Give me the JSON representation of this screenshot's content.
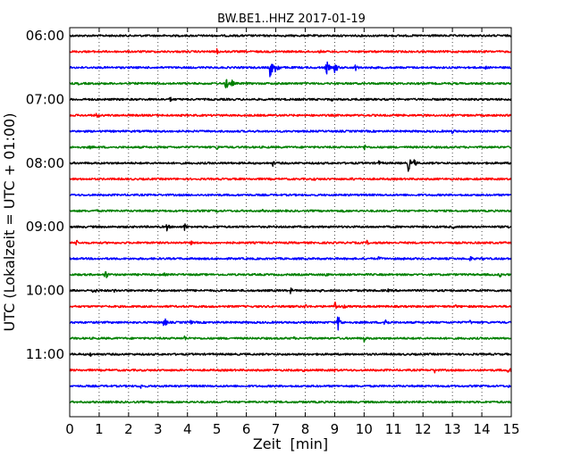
{
  "chart_data": {
    "type": "line",
    "title": "BW.BE1..HHZ 2017-01-19",
    "xlabel": "Zeit  [min]",
    "ylabel": "UTC (Lokalzeit = UTC + 01:00)",
    "xlim": [
      0,
      15
    ],
    "x_ticks": [
      0,
      1,
      2,
      3,
      4,
      5,
      6,
      7,
      8,
      9,
      10,
      11,
      12,
      13,
      14,
      15
    ],
    "y_tick_labels": [
      "06:00",
      "07:00",
      "08:00",
      "09:00",
      "10:00",
      "11:00"
    ],
    "grid": "vertical dotted",
    "trace_colors": [
      "#000000",
      "#ff0000",
      "#0000ff",
      "#008000"
    ],
    "trace_minutes": 15,
    "traces": [
      {
        "start": "06:00",
        "events": [
          [
            5.0,
            0.2
          ]
        ]
      },
      {
        "start": "06:15",
        "events": [
          [
            5.0,
            0.6
          ],
          [
            8.5,
            0.4
          ]
        ]
      },
      {
        "start": "06:30",
        "events": [
          [
            6.8,
            2.2
          ],
          [
            7.0,
            1.6
          ],
          [
            8.7,
            1.8
          ],
          [
            9.0,
            1.4
          ],
          [
            9.7,
            0.7
          ],
          [
            14.1,
            0.5
          ]
        ]
      },
      {
        "start": "06:45",
        "events": [
          [
            0.3,
            0.3
          ],
          [
            5.3,
            1.4
          ],
          [
            5.5,
            0.8
          ]
        ]
      },
      {
        "start": "07:00",
        "events": [
          [
            3.4,
            0.6
          ],
          [
            7.9,
            0.4
          ],
          [
            8.9,
            0.4
          ]
        ]
      },
      {
        "start": "07:15",
        "events": [
          [
            0.9,
            0.7
          ]
        ]
      },
      {
        "start": "07:30",
        "events": [
          [
            13.0,
            0.6
          ]
        ]
      },
      {
        "start": "07:45",
        "events": [
          [
            0.7,
            0.4
          ],
          [
            5.0,
            0.6
          ],
          [
            10.0,
            0.7
          ]
        ]
      },
      {
        "start": "08:00",
        "events": [
          [
            6.9,
            0.6
          ],
          [
            10.5,
            0.5
          ],
          [
            11.5,
            1.6
          ],
          [
            11.7,
            0.8
          ]
        ]
      },
      {
        "start": "08:15",
        "events": [
          [
            8.3,
            0.4
          ],
          [
            9.6,
            0.5
          ],
          [
            13.8,
            0.4
          ]
        ]
      },
      {
        "start": "08:30",
        "events": [
          [
            1.0,
            0.3
          ],
          [
            5.0,
            0.3
          ],
          [
            9.3,
            0.3
          ]
        ]
      },
      {
        "start": "08:45",
        "events": [
          [
            0.9,
            0.4
          ],
          [
            5.0,
            0.4
          ],
          [
            6.5,
            0.5
          ],
          [
            9.3,
            0.4
          ]
        ]
      },
      {
        "start": "09:00",
        "events": [
          [
            3.3,
            0.8
          ],
          [
            3.9,
            0.8
          ],
          [
            5.0,
            0.4
          ],
          [
            13.0,
            0.5
          ],
          [
            14.9,
            0.4
          ]
        ]
      },
      {
        "start": "09:15",
        "events": [
          [
            0.2,
            0.8
          ],
          [
            4.1,
            0.5
          ],
          [
            10.1,
            0.5
          ]
        ]
      },
      {
        "start": "09:30",
        "events": [
          [
            10.5,
            0.6
          ],
          [
            11.3,
            0.4
          ],
          [
            13.6,
            0.6
          ],
          [
            14.0,
            0.5
          ]
        ]
      },
      {
        "start": "09:45",
        "events": [
          [
            1.2,
            1.1
          ],
          [
            3.2,
            0.4
          ],
          [
            8.7,
            0.5
          ],
          [
            14.6,
            0.6
          ]
        ]
      },
      {
        "start": "10:00",
        "events": [
          [
            0.8,
            0.9
          ],
          [
            1.5,
            0.5
          ],
          [
            7.5,
            0.6
          ],
          [
            8.5,
            0.4
          ],
          [
            10.8,
            0.4
          ]
        ]
      },
      {
        "start": "10:15",
        "events": [
          [
            8.0,
            0.6
          ],
          [
            9.0,
            1.2
          ],
          [
            9.3,
            0.5
          ],
          [
            13.1,
            0.4
          ]
        ]
      },
      {
        "start": "10:30",
        "events": [
          [
            3.2,
            1.2
          ],
          [
            4.1,
            0.5
          ],
          [
            9.1,
            1.9
          ],
          [
            10.7,
            1.3
          ],
          [
            13.6,
            0.5
          ]
        ]
      },
      {
        "start": "10:45",
        "events": [
          [
            3.9,
            0.6
          ],
          [
            7.6,
            0.4
          ],
          [
            10.0,
            0.7
          ]
        ]
      },
      {
        "start": "11:00",
        "events": [
          [
            0.7,
            0.5
          ]
        ]
      },
      {
        "start": "11:15",
        "events": [
          [
            7.9,
            0.6
          ],
          [
            9.0,
            0.5
          ],
          [
            12.4,
            0.6
          ],
          [
            14.9,
            0.7
          ]
        ]
      },
      {
        "start": "11:30",
        "events": [
          [
            2.4,
            0.6
          ],
          [
            14.9,
            0.3
          ]
        ]
      },
      {
        "start": "11:45",
        "events": [
          [
            1.4,
            0.3
          ]
        ]
      }
    ]
  }
}
